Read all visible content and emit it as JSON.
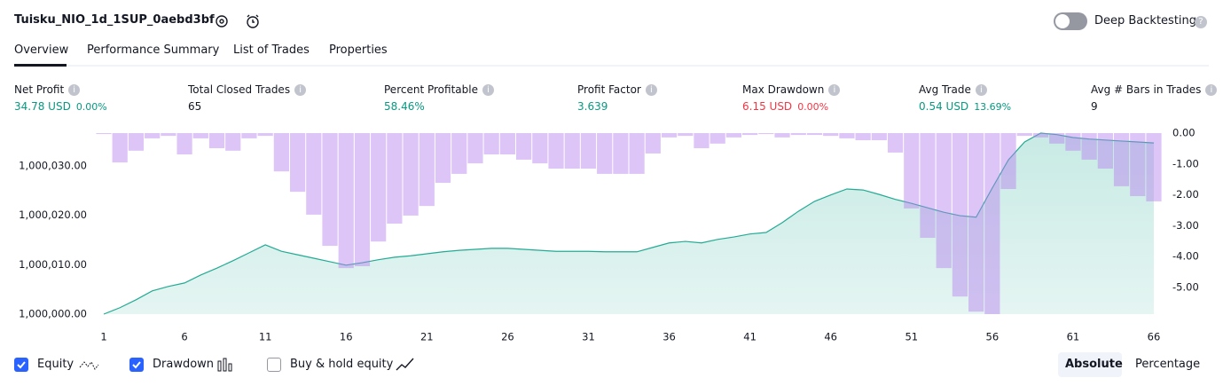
{
  "header": {
    "title": "Tuisku_NIO_1d_1SUP_0aebd3bf",
    "deep_backtesting": "Deep Backtesting"
  },
  "tabs": [
    "Overview",
    "Performance Summary",
    "List of Trades",
    "Properties"
  ],
  "metrics": [
    {
      "label": "Net Profit",
      "value": "34.78 USD",
      "percent": "0.00%",
      "color": "#089981"
    },
    {
      "label": "Total Closed Trades",
      "value": "65",
      "color": "#131722"
    },
    {
      "label": "Percent Profitable",
      "value": "58.46%",
      "color": "#089981"
    },
    {
      "label": "Profit Factor",
      "value": "3.639",
      "color": "#089981"
    },
    {
      "label": "Max Drawdown",
      "value": "6.15 USD",
      "percent": "0.00%",
      "color": "#f23645"
    },
    {
      "label": "Avg Trade",
      "value": "0.54 USD",
      "percent": "13.69%",
      "color": "#089981"
    },
    {
      "label": "Avg # Bars in Trades",
      "value": "9",
      "color": "#131722"
    }
  ],
  "chart_data": {
    "type": "combo",
    "x": [
      1,
      2,
      3,
      4,
      5,
      6,
      7,
      8,
      9,
      10,
      11,
      12,
      13,
      14,
      15,
      16,
      17,
      18,
      19,
      20,
      21,
      22,
      23,
      24,
      25,
      26,
      27,
      28,
      29,
      30,
      31,
      32,
      33,
      34,
      35,
      36,
      37,
      38,
      39,
      40,
      41,
      42,
      43,
      44,
      45,
      46,
      47,
      48,
      49,
      50,
      51,
      52,
      53,
      54,
      55,
      56,
      57,
      58,
      59,
      60,
      61,
      62,
      63,
      64,
      65,
      66
    ],
    "xlim": [
      1,
      66
    ],
    "xticks": [
      1,
      6,
      11,
      16,
      21,
      26,
      31,
      36,
      41,
      46,
      51,
      56,
      61,
      66
    ],
    "ylim": [
      1000000,
      1000036.6
    ],
    "yticks": [
      {
        "value": 1000000,
        "label": "1,000,000.00"
      },
      {
        "value": 1000010,
        "label": "1,000,010.00"
      },
      {
        "value": 1000020,
        "label": "1,000,020.00"
      },
      {
        "value": 1000030,
        "label": "1,000,030.00"
      }
    ],
    "y2lim": [
      -5.86,
      0
    ],
    "y2ticks": [
      {
        "value": 0,
        "label": "0.00"
      },
      {
        "value": -1,
        "label": "-1.00"
      },
      {
        "value": -2,
        "label": "-2.00"
      },
      {
        "value": -3,
        "label": "-3.00"
      },
      {
        "value": -4,
        "label": "-4.00"
      },
      {
        "value": -5,
        "label": "-5.00"
      }
    ],
    "series": [
      {
        "name": "Equity",
        "type": "area",
        "color": "#22ab94",
        "visible": true,
        "values": [
          1000000,
          1000001.3,
          1000002.9,
          1000004.7,
          1000005.6,
          1000006.3,
          1000007.9,
          1000009.3,
          1000010.8,
          1000012.4,
          1000014,
          1000012.7,
          1000012,
          1000011.3,
          1000010.6,
          1000009.9,
          1000010.4,
          1000011,
          1000011.5,
          1000011.8,
          1000012.2,
          1000012.6,
          1000012.9,
          1000013.1,
          1000013.3,
          1000013.3,
          1000013.1,
          1000012.9,
          1000012.7,
          1000012.7,
          1000012.7,
          1000012.6,
          1000012.6,
          1000012.6,
          1000013.5,
          1000014.4,
          1000014.7,
          1000014.4,
          1000015.1,
          1000015.6,
          1000016.2,
          1000016.5,
          1000018.5,
          1000020.8,
          1000022.8,
          1000024.1,
          1000025.3,
          1000025.1,
          1000024.2,
          1000023.2,
          1000022.4,
          1000021.5,
          1000020.6,
          1000019.9,
          1000019.6,
          1000025.5,
          1000031.2,
          1000034.8,
          1000036.6,
          1000036.3,
          1000035.7,
          1000035.4,
          1000035.2,
          1000035,
          1000034.8,
          1000034.6
        ]
      },
      {
        "name": "Drawdown",
        "type": "bar",
        "axis": "y2",
        "color": "#b57ef0",
        "visible": true,
        "values": [
          -0.03,
          -0.95,
          -0.57,
          -0.17,
          -0.09,
          -0.69,
          -0.17,
          -0.49,
          -0.57,
          -0.17,
          -0.09,
          -1.24,
          -1.9,
          -2.64,
          -3.65,
          -4.37,
          -4.31,
          -3.51,
          -2.93,
          -2.67,
          -2.36,
          -1.61,
          -1.32,
          -0.98,
          -0.69,
          -0.69,
          -0.86,
          -0.98,
          -1.15,
          -1.15,
          -1.15,
          -1.32,
          -1.32,
          -1.32,
          -0.66,
          -0.14,
          -0.09,
          -0.49,
          -0.34,
          -0.14,
          -0.06,
          -0.03,
          -0.14,
          -0.06,
          -0.06,
          -0.09,
          -0.17,
          -0.23,
          -0.23,
          -0.63,
          -2.44,
          -3.39,
          -4.37,
          -5.29,
          -5.78,
          -5.86,
          -1.81,
          -0.09,
          -0.14,
          -0.34,
          -0.57,
          -0.86,
          -1.15,
          -1.72,
          -2.04,
          -2.21
        ]
      }
    ]
  },
  "controls": {
    "buy_hold": "Buy & hold equity",
    "buy_hold_checked": false,
    "modes": [
      "Absolute",
      "Percentage"
    ]
  }
}
